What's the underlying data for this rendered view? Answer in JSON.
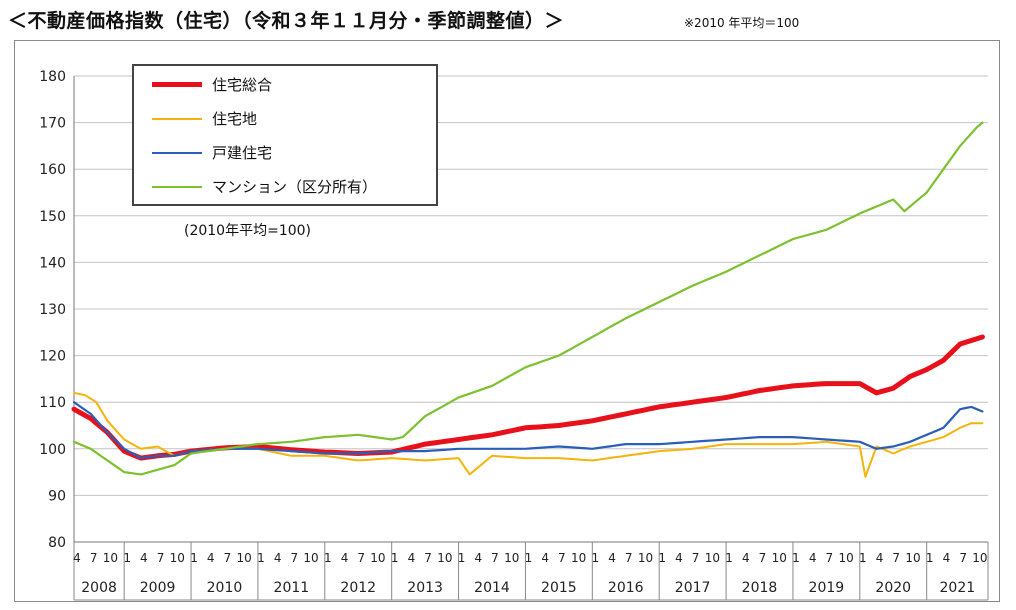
{
  "header": {
    "title": "＜不動産価格指数（住宅）（令和３年１１月分・季節調整値）＞",
    "note": "※2010 年平均＝100"
  },
  "chart_data": {
    "type": "line",
    "base_note": "(2010年平均=100)",
    "ylim": [
      80,
      180
    ],
    "yticks": [
      80,
      90,
      100,
      110,
      120,
      130,
      140,
      150,
      160,
      170,
      180
    ],
    "grid": true,
    "legend_position": "top-left",
    "month_tick_labels": [
      "4",
      "7",
      "10",
      "1"
    ],
    "x_start": "2008-04",
    "x_end": "2021-11",
    "years": [
      "2008",
      "2009",
      "2010",
      "2011",
      "2012",
      "2013",
      "2014",
      "2015",
      "2016",
      "2017",
      "2018",
      "2019",
      "2020",
      "2021"
    ],
    "series": [
      {
        "name": "住宅総合",
        "color": "#e8101a",
        "width": 5,
        "anchors": [
          [
            "2008-04",
            108.5
          ],
          [
            "2008-07",
            106.5
          ],
          [
            "2008-10",
            103.5
          ],
          [
            "2009-01",
            99.5
          ],
          [
            "2009-04",
            98.0
          ],
          [
            "2009-07",
            98.5
          ],
          [
            "2009-10",
            98.8
          ],
          [
            "2010-01",
            99.5
          ],
          [
            "2010-07",
            100.2
          ],
          [
            "2011-01",
            100.5
          ],
          [
            "2011-07",
            99.8
          ],
          [
            "2012-01",
            99.3
          ],
          [
            "2012-07",
            99.0
          ],
          [
            "2013-01",
            99.3
          ],
          [
            "2013-07",
            101.0
          ],
          [
            "2014-01",
            102.0
          ],
          [
            "2014-07",
            103.0
          ],
          [
            "2015-01",
            104.5
          ],
          [
            "2015-07",
            105.0
          ],
          [
            "2016-01",
            106.0
          ],
          [
            "2016-07",
            107.5
          ],
          [
            "2017-01",
            109.0
          ],
          [
            "2017-07",
            110.0
          ],
          [
            "2018-01",
            111.0
          ],
          [
            "2018-07",
            112.5
          ],
          [
            "2019-01",
            113.5
          ],
          [
            "2019-07",
            114.0
          ],
          [
            "2020-01",
            114.0
          ],
          [
            "2020-04",
            112.0
          ],
          [
            "2020-07",
            113.0
          ],
          [
            "2020-10",
            115.5
          ],
          [
            "2021-01",
            117.0
          ],
          [
            "2021-04",
            119.0
          ],
          [
            "2021-07",
            122.5
          ],
          [
            "2021-11",
            124.0
          ]
        ]
      },
      {
        "name": "住宅地",
        "color": "#f5b40a",
        "width": 2,
        "anchors": [
          [
            "2008-04",
            112.0
          ],
          [
            "2008-06",
            111.5
          ],
          [
            "2008-08",
            110.0
          ],
          [
            "2008-10",
            106.0
          ],
          [
            "2009-01",
            102.0
          ],
          [
            "2009-04",
            100.0
          ],
          [
            "2009-07",
            100.5
          ],
          [
            "2009-10",
            98.5
          ],
          [
            "2010-01",
            99.5
          ],
          [
            "2010-07",
            100.0
          ],
          [
            "2011-01",
            100.0
          ],
          [
            "2011-07",
            98.5
          ],
          [
            "2012-01",
            98.5
          ],
          [
            "2012-07",
            97.5
          ],
          [
            "2013-01",
            98.0
          ],
          [
            "2013-07",
            97.5
          ],
          [
            "2014-01",
            98.0
          ],
          [
            "2014-03",
            94.5
          ],
          [
            "2014-07",
            98.5
          ],
          [
            "2015-01",
            98.0
          ],
          [
            "2015-07",
            98.0
          ],
          [
            "2016-01",
            97.5
          ],
          [
            "2016-07",
            98.5
          ],
          [
            "2017-01",
            99.5
          ],
          [
            "2017-07",
            100.0
          ],
          [
            "2018-01",
            101.0
          ],
          [
            "2018-07",
            101.0
          ],
          [
            "2019-01",
            101.0
          ],
          [
            "2019-07",
            101.5
          ],
          [
            "2020-01",
            100.5
          ],
          [
            "2020-02",
            94.0
          ],
          [
            "2020-04",
            100.5
          ],
          [
            "2020-07",
            99.0
          ],
          [
            "2020-10",
            100.5
          ],
          [
            "2021-01",
            101.5
          ],
          [
            "2021-04",
            102.5
          ],
          [
            "2021-07",
            104.5
          ],
          [
            "2021-09",
            105.5
          ],
          [
            "2021-11",
            105.5
          ]
        ]
      },
      {
        "name": "戸建住宅",
        "color": "#2b5eb8",
        "width": 2.2,
        "anchors": [
          [
            "2008-04",
            110.0
          ],
          [
            "2008-07",
            107.5
          ],
          [
            "2008-10",
            103.5
          ],
          [
            "2009-01",
            100.0
          ],
          [
            "2009-04",
            98.0
          ],
          [
            "2009-07",
            98.5
          ],
          [
            "2009-10",
            98.5
          ],
          [
            "2010-01",
            99.5
          ],
          [
            "2010-07",
            100.0
          ],
          [
            "2011-01",
            100.0
          ],
          [
            "2011-07",
            99.5
          ],
          [
            "2012-01",
            99.0
          ],
          [
            "2012-07",
            99.0
          ],
          [
            "2013-01",
            99.5
          ],
          [
            "2013-07",
            99.5
          ],
          [
            "2014-01",
            100.0
          ],
          [
            "2014-07",
            100.0
          ],
          [
            "2015-01",
            100.0
          ],
          [
            "2015-07",
            100.5
          ],
          [
            "2016-01",
            100.0
          ],
          [
            "2016-07",
            101.0
          ],
          [
            "2017-01",
            101.0
          ],
          [
            "2017-07",
            101.5
          ],
          [
            "2018-01",
            102.0
          ],
          [
            "2018-07",
            102.5
          ],
          [
            "2019-01",
            102.5
          ],
          [
            "2019-07",
            102.0
          ],
          [
            "2020-01",
            101.5
          ],
          [
            "2020-04",
            100.0
          ],
          [
            "2020-07",
            100.5
          ],
          [
            "2020-10",
            101.5
          ],
          [
            "2021-01",
            103.0
          ],
          [
            "2021-04",
            104.5
          ],
          [
            "2021-07",
            108.5
          ],
          [
            "2021-09",
            109.0
          ],
          [
            "2021-11",
            108.0
          ]
        ]
      },
      {
        "name": "マンション（区分所有）",
        "color": "#7cc130",
        "width": 2.2,
        "anchors": [
          [
            "2008-04",
            101.5
          ],
          [
            "2008-07",
            100.0
          ],
          [
            "2008-10",
            97.5
          ],
          [
            "2009-01",
            95.0
          ],
          [
            "2009-04",
            94.5
          ],
          [
            "2009-07",
            95.5
          ],
          [
            "2009-10",
            96.5
          ],
          [
            "2010-01",
            99.0
          ],
          [
            "2010-07",
            100.0
          ],
          [
            "2011-01",
            101.0
          ],
          [
            "2011-07",
            101.5
          ],
          [
            "2012-01",
            102.5
          ],
          [
            "2012-07",
            103.0
          ],
          [
            "2013-01",
            102.0
          ],
          [
            "2013-03",
            102.5
          ],
          [
            "2013-07",
            107.0
          ],
          [
            "2013-10",
            109.0
          ],
          [
            "2014-01",
            111.0
          ],
          [
            "2014-07",
            113.5
          ],
          [
            "2015-01",
            117.5
          ],
          [
            "2015-07",
            120.0
          ],
          [
            "2016-01",
            124.0
          ],
          [
            "2016-07",
            128.0
          ],
          [
            "2017-01",
            131.5
          ],
          [
            "2017-07",
            135.0
          ],
          [
            "2018-01",
            138.0
          ],
          [
            "2018-07",
            141.5
          ],
          [
            "2019-01",
            145.0
          ],
          [
            "2019-07",
            147.0
          ],
          [
            "2020-01",
            150.5
          ],
          [
            "2020-07",
            153.5
          ],
          [
            "2020-09",
            151.0
          ],
          [
            "2021-01",
            155.0
          ],
          [
            "2021-04",
            160.0
          ],
          [
            "2021-07",
            165.0
          ],
          [
            "2021-10",
            169.0
          ],
          [
            "2021-11",
            170.0
          ]
        ]
      }
    ]
  }
}
